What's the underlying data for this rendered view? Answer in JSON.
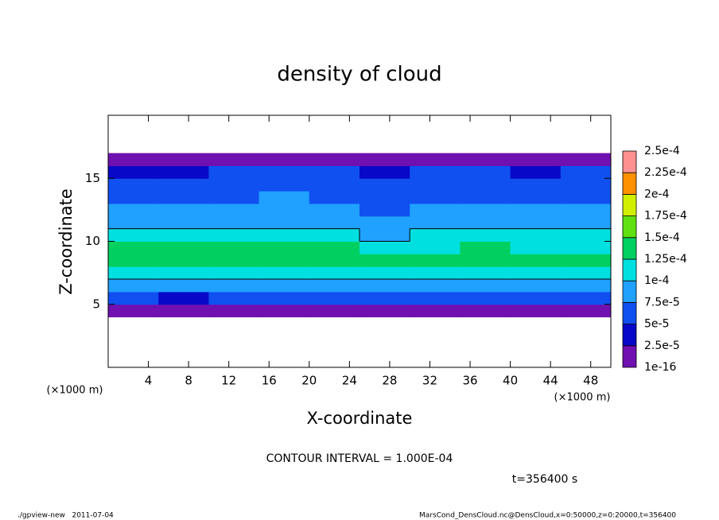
{
  "chart_data": {
    "type": "heatmap",
    "title": "density of cloud",
    "xlabel": "X-coordinate",
    "ylabel": "Z-coordinate",
    "x_units": [
      "(×1000 m)",
      "(×1000 m)"
    ],
    "xlim": [
      0,
      50
    ],
    "ylim": [
      0,
      20
    ],
    "xticks": [
      4,
      8,
      12,
      16,
      20,
      24,
      28,
      32,
      36,
      40,
      44,
      48
    ],
    "yticks": [
      5,
      10,
      15
    ],
    "xbins": [
      0,
      5,
      10,
      15,
      20,
      25,
      30,
      35,
      40,
      45,
      50
    ],
    "zbins": [
      0,
      1,
      2,
      3,
      4,
      5,
      6,
      7,
      8,
      9,
      10,
      11,
      12,
      13,
      14,
      15,
      16,
      17,
      18,
      19,
      20
    ],
    "values": [
      [
        0,
        0,
        0,
        0,
        0,
        0,
        0,
        0,
        0,
        0
      ],
      [
        0,
        0,
        0,
        0,
        0,
        0,
        0,
        0,
        0,
        0
      ],
      [
        0,
        0,
        0,
        0,
        0,
        0,
        0,
        0,
        0,
        0
      ],
      [
        0,
        0,
        0,
        0,
        0,
        0,
        0,
        0,
        0,
        0
      ],
      [
        2e-05,
        1.5e-05,
        2e-05,
        1.8e-05,
        2e-05,
        1.6e-05,
        2e-05,
        1.8e-05,
        2e-05,
        1.9e-05
      ],
      [
        5.5e-05,
        4.5e-05,
        6e-05,
        6.5e-05,
        5.5e-05,
        5e-05,
        6e-05,
        5.5e-05,
        6e-05,
        5.8e-05
      ],
      [
        8.5e-05,
        8e-05,
        9e-05,
        9.5e-05,
        8.8e-05,
        8.5e-05,
        9e-05,
        9.2e-05,
        9e-05,
        8.7e-05
      ],
      [
        0.00011,
        0.000105,
        0.000115,
        0.00012,
        0.000115,
        0.00011,
        0.000115,
        0.000112,
        0.00011,
        0.000108
      ],
      [
        0.00013,
        0.000128,
        0.000135,
        0.00014,
        0.000138,
        0.00013,
        0.000132,
        0.000136,
        0.00013,
        0.000128
      ],
      [
        0.000125,
        0.00013,
        0.000128,
        0.00013,
        0.000126,
        0.00012,
        0.000122,
        0.000125,
        0.000124,
        0.000122
      ],
      [
        0.000105,
        0.000108,
        0.000106,
        0.000104,
        0.000102,
        9.5e-05,
        0.000102,
        0.000105,
        0.000104,
        0.000103
      ],
      [
        8.5e-05,
        9e-05,
        8.8e-05,
        8.6e-05,
        8.4e-05,
        8e-05,
        8.2e-05,
        8.4e-05,
        8.5e-05,
        8.3e-05
      ],
      [
        7.8e-05,
        8e-05,
        7.6e-05,
        7.8e-05,
        7.7e-05,
        7.2e-05,
        7.5e-05,
        7.6e-05,
        7.7e-05,
        7.6e-05
      ],
      [
        7e-05,
        7.2e-05,
        7.4e-05,
        7.6e-05,
        7.2e-05,
        6.8e-05,
        7e-05,
        7.1e-05,
        7e-05,
        7.2e-05
      ],
      [
        6.2e-05,
        6.4e-05,
        6.6e-05,
        6.8e-05,
        6.5e-05,
        6e-05,
        6.2e-05,
        6.5e-05,
        6.3e-05,
        6.4e-05
      ],
      [
        4.5e-05,
        4.8e-05,
        5.2e-05,
        5.5e-05,
        5e-05,
        4.8e-05,
        5e-05,
        5.1e-05,
        4.9e-05,
        5e-05
      ],
      [
        2e-05,
        2.2e-05,
        2.1e-05,
        2e-05,
        2.2e-05,
        1.8e-05,
        2e-05,
        2.1e-05,
        2e-05,
        2.1e-05
      ],
      [
        0,
        0,
        0,
        0,
        0,
        0,
        0,
        0,
        0,
        0
      ],
      [
        0,
        0,
        0,
        0,
        0,
        0,
        0,
        0,
        0,
        0
      ],
      [
        0,
        0,
        0,
        0,
        0,
        0,
        0,
        0,
        0,
        0
      ]
    ],
    "colorbar": {
      "levels": [
        {
          "value": 1e-16,
          "label": "1e-16"
        },
        {
          "value": 2.5e-05,
          "label": "2.5e-5"
        },
        {
          "value": 5e-05,
          "label": "5e-5"
        },
        {
          "value": 7.5e-05,
          "label": "7.5e-5"
        },
        {
          "value": 0.0001,
          "label": "1e-4"
        },
        {
          "value": 0.000125,
          "label": "1.25e-4"
        },
        {
          "value": 0.00015,
          "label": "1.5e-4"
        },
        {
          "value": 0.000175,
          "label": "1.75e-4"
        },
        {
          "value": 0.0002,
          "label": "2e-4"
        },
        {
          "value": 0.000225,
          "label": "2.25e-4"
        },
        {
          "value": 0.00025,
          "label": "2.5e-4"
        }
      ],
      "colors": [
        "#7010b0",
        "#0808c8",
        "#1050f0",
        "#20a0ff",
        "#00e0e0",
        "#00d060",
        "#60e010",
        "#d0f000",
        "#ff9000",
        "#ff9090"
      ]
    },
    "annotations": [
      "CONTOUR INTERVAL = 1.000E-04",
      "t=356400 s",
      "./gpview-new   2011-07-04",
      "MarsCond_DensCloud.nc@DensCloud,x=0:50000,z=0:20000,t=356400"
    ]
  }
}
